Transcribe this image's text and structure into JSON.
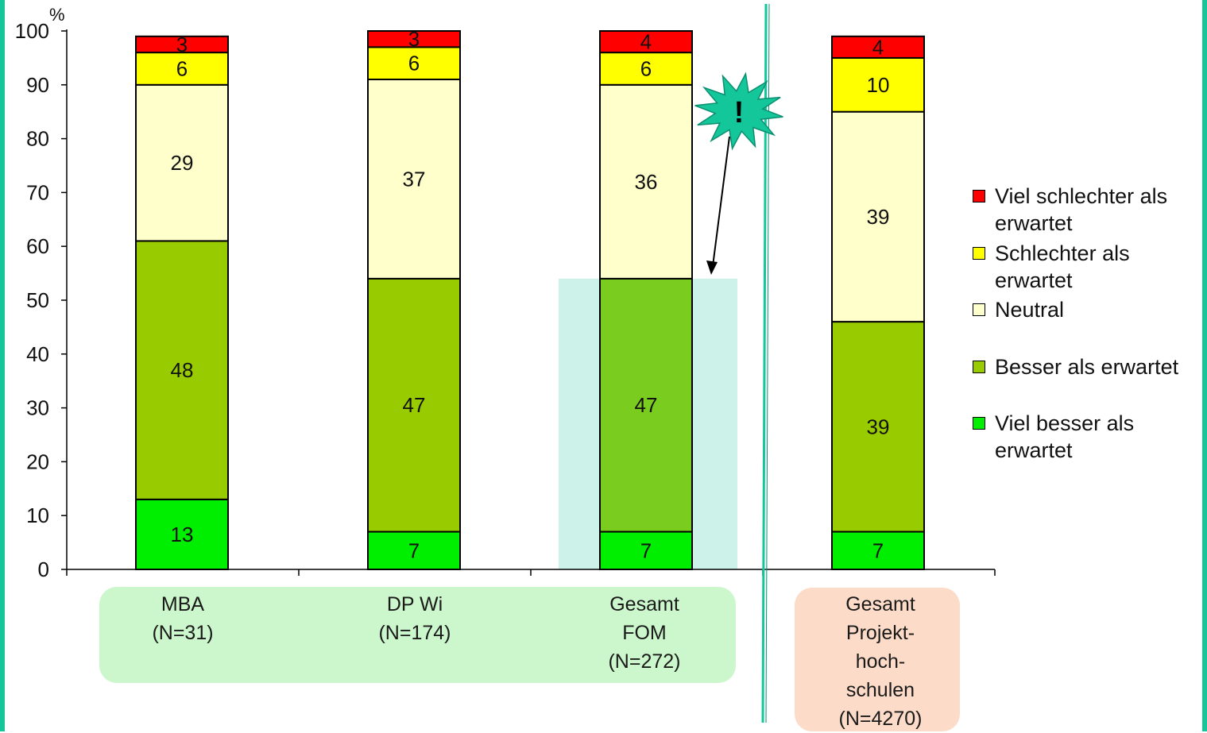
{
  "chart_data": {
    "type": "bar",
    "stacked": true,
    "y_unit": "%",
    "ylim": [
      0,
      100
    ],
    "yticks": [
      0,
      10,
      20,
      30,
      40,
      50,
      60,
      70,
      80,
      90,
      100
    ],
    "categories": [
      "MBA\n(N=31)",
      "DP Wi\n(N=174)",
      "Gesamt\nFOM\n(N=272)",
      "Gesamt\nProjekt-\nhoch-\nschulen\n(N=4270)"
    ],
    "series": [
      {
        "name": "Viel besser als erwartet",
        "color": "#00ee00",
        "values": [
          13,
          7,
          7,
          7
        ]
      },
      {
        "name": "Besser als erwartet",
        "color": "#99cc00",
        "values": [
          48,
          47,
          47,
          39
        ]
      },
      {
        "name": "Neutral",
        "color": "#ffffcc",
        "values": [
          29,
          37,
          36,
          39
        ]
      },
      {
        "name": "Schlechter als erwartet",
        "color": "#ffff00",
        "values": [
          6,
          6,
          6,
          10
        ]
      },
      {
        "name": "Viel schlechter als erwartet",
        "color": "#ff0000",
        "values": [
          3,
          3,
          4,
          4
        ]
      }
    ],
    "legend": {
      "position": "right",
      "items": [
        {
          "label": "Viel schlechter als erwartet",
          "color": "#ff0000"
        },
        {
          "label": "Schlechter als erwartet",
          "color": "#ffff00"
        },
        {
          "label": "Neutral",
          "color": "#ffffcc"
        },
        {
          "label": "Besser als erwartet",
          "color": "#99cc00"
        },
        {
          "label": "Viel besser als erwartet",
          "color": "#00ee00"
        }
      ]
    },
    "highlight": {
      "category_index": 2,
      "upto_value": 54,
      "color": "#cdf2ea",
      "overlay_color": "#7acc1e"
    },
    "callout": {
      "text": "!",
      "color": "#14c79a"
    },
    "group_box_colors": {
      "fom": "#ccf7cc",
      "projekt": "#fcdcc8"
    },
    "divider_color": "#14c79a"
  }
}
